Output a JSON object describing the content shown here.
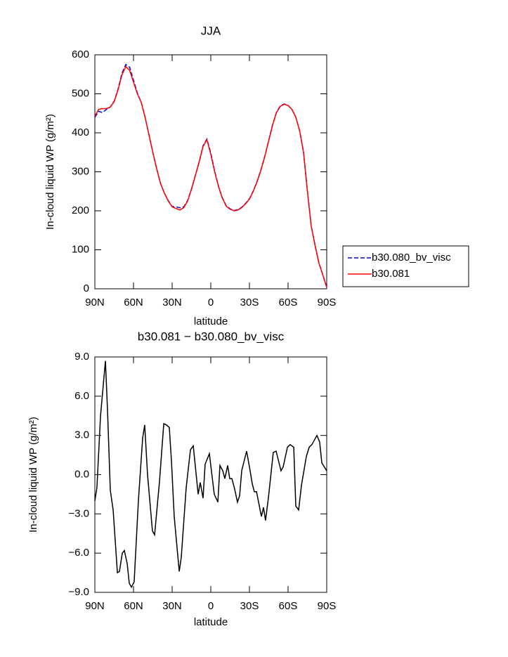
{
  "chart_data": [
    {
      "type": "line",
      "title": "JJA",
      "xlabel": "latitude",
      "ylabel": "In-cloud liquid WP (g/m²)",
      "x": [
        90,
        87,
        84,
        81,
        78,
        75,
        72,
        69,
        66,
        63,
        60,
        57,
        54,
        51,
        48,
        45,
        42,
        39,
        36,
        33,
        30,
        27,
        24,
        21,
        18,
        15,
        12,
        9,
        6,
        3,
        0,
        -3,
        -6,
        -9,
        -12,
        -15,
        -18,
        -21,
        -24,
        -27,
        -30,
        -33,
        -36,
        -39,
        -42,
        -45,
        -48,
        -51,
        -54,
        -57,
        -60,
        -63,
        -66,
        -69,
        -72,
        -75,
        -78,
        -81,
        -84,
        -87,
        -90
      ],
      "series": [
        {
          "name": "b30.080_bv_visc",
          "color": "#0000cc",
          "dash": true,
          "values": [
            440,
            455,
            452,
            460,
            466,
            481,
            512,
            552,
            575,
            568,
            535,
            502,
            478,
            440,
            395,
            350,
            308,
            270,
            245,
            226,
            211,
            210,
            208,
            210,
            226,
            256,
            291,
            326,
            367,
            384,
            348,
            302,
            263,
            233,
            213,
            205,
            201,
            203,
            209,
            219,
            231,
            251,
            276,
            306,
            341,
            381,
            421,
            453,
            469,
            474,
            470,
            460,
            440,
            405,
            350,
            251,
            161,
            111,
            66,
            36,
            4
          ]
        },
        {
          "name": "b30.081",
          "color": "#ff0000",
          "dash": false,
          "values": [
            443,
            460,
            462,
            462,
            466,
            480,
            510,
            548,
            570,
            560,
            530,
            500,
            478,
            440,
            395,
            350,
            308,
            270,
            245,
            225,
            210,
            206,
            202,
            208,
            225,
            255,
            290,
            325,
            365,
            382,
            345,
            300,
            262,
            232,
            212,
            204,
            200,
            202,
            208,
            218,
            230,
            250,
            275,
            305,
            340,
            380,
            420,
            452,
            468,
            473,
            470,
            460,
            440,
            405,
            350,
            250,
            160,
            110,
            65,
            35,
            3
          ]
        }
      ],
      "xlim": [
        90,
        -90
      ],
      "xticks": [
        {
          "value": 90,
          "label": "90N"
        },
        {
          "value": 60,
          "label": "60N"
        },
        {
          "value": 30,
          "label": "30N"
        },
        0,
        {
          "value": -30,
          "label": "30S"
        },
        {
          "value": -60,
          "label": "60S"
        },
        {
          "value": -90,
          "label": "90S"
        }
      ],
      "ylim": [
        0,
        600
      ],
      "yticks": [
        0,
        100,
        200,
        300,
        400,
        500,
        600
      ],
      "legend": "right"
    },
    {
      "type": "line",
      "title": "b30.081 − b30.080_bv_visc",
      "xlabel": "latitude",
      "ylabel": "In-cloud liquid WP (g/m²)",
      "x": [
        90,
        88.4,
        85.6,
        81.8,
        80.2,
        78,
        75.8,
        72.5,
        70.9,
        68.7,
        67.1,
        64.9,
        63.3,
        61.6,
        59.5,
        56.2,
        52.9,
        51.3,
        49.1,
        45.3,
        43.6,
        39.8,
        36.5,
        34.4,
        32.2,
        30.5,
        28.4,
        24.5,
        22.9,
        19.1,
        15.8,
        13.6,
        9.8,
        8.2,
        6,
        4.4,
        1.1,
        -2.7,
        -5.5,
        -7.1,
        -9.3,
        -10.9,
        -13.1,
        -14.7,
        -16.4,
        -18.5,
        -20.7,
        -22.4,
        -24,
        -27.8,
        -30,
        -32.2,
        -33.8,
        -35.5,
        -39.3,
        -40.9,
        -42.5,
        -44.7,
        -48.5,
        -50.7,
        -54.5,
        -56.2,
        -59.5,
        -61.6,
        -64.4,
        -66,
        -68.2,
        -70.4,
        -74.2,
        -76.4,
        -78.5,
        -82.4,
        -84.5,
        -86.2,
        -90
      ],
      "values": [
        -2.0,
        -1.0,
        4.5,
        8.7,
        5.0,
        -1.2,
        -2.7,
        -7.5,
        -7.4,
        -6.0,
        -5.8,
        -6.8,
        -8.3,
        -8.6,
        -8.2,
        -2.0,
        2.8,
        3.8,
        0.0,
        -4.3,
        -4.6,
        -0.5,
        3.9,
        3.8,
        3.6,
        1.0,
        -3.2,
        -7.4,
        -6.3,
        -1.0,
        1.9,
        2.2,
        -1.5,
        -0.6,
        -1.8,
        0.8,
        1.6,
        -1.5,
        -2.1,
        0.7,
        0.3,
        -0.3,
        0.7,
        -0.3,
        -0.3,
        -1.1,
        -2.1,
        -1.6,
        0.3,
        1.8,
        0.6,
        -0.7,
        -1.3,
        -1.3,
        -3.2,
        -2.5,
        -3.5,
        -1.8,
        1.7,
        1.8,
        0.3,
        0.6,
        2.1,
        2.3,
        2.1,
        -2.4,
        -2.7,
        -0.8,
        1.4,
        2.1,
        2.3,
        3.0,
        2.5,
        0.9,
        0.3
      ],
      "color": "#000000",
      "xlim": [
        90,
        -90
      ],
      "xticks": [
        {
          "value": 90,
          "label": "90N"
        },
        {
          "value": 60,
          "label": "60N"
        },
        {
          "value": 30,
          "label": "30N"
        },
        0,
        {
          "value": -30,
          "label": "30S"
        },
        {
          "value": -60,
          "label": "60S"
        },
        {
          "value": -90,
          "label": "90S"
        }
      ],
      "ylim": [
        -9,
        9
      ],
      "yticks": [
        {
          "value": -9,
          "label": "−9.0"
        },
        {
          "value": -6,
          "label": "−6.0"
        },
        {
          "value": -3,
          "label": "−3.0"
        },
        {
          "value": 0,
          "label": "0.0"
        },
        {
          "value": 3,
          "label": "3.0"
        },
        {
          "value": 6,
          "label": "6.0"
        },
        {
          "value": 9,
          "label": "9.0"
        }
      ]
    }
  ]
}
